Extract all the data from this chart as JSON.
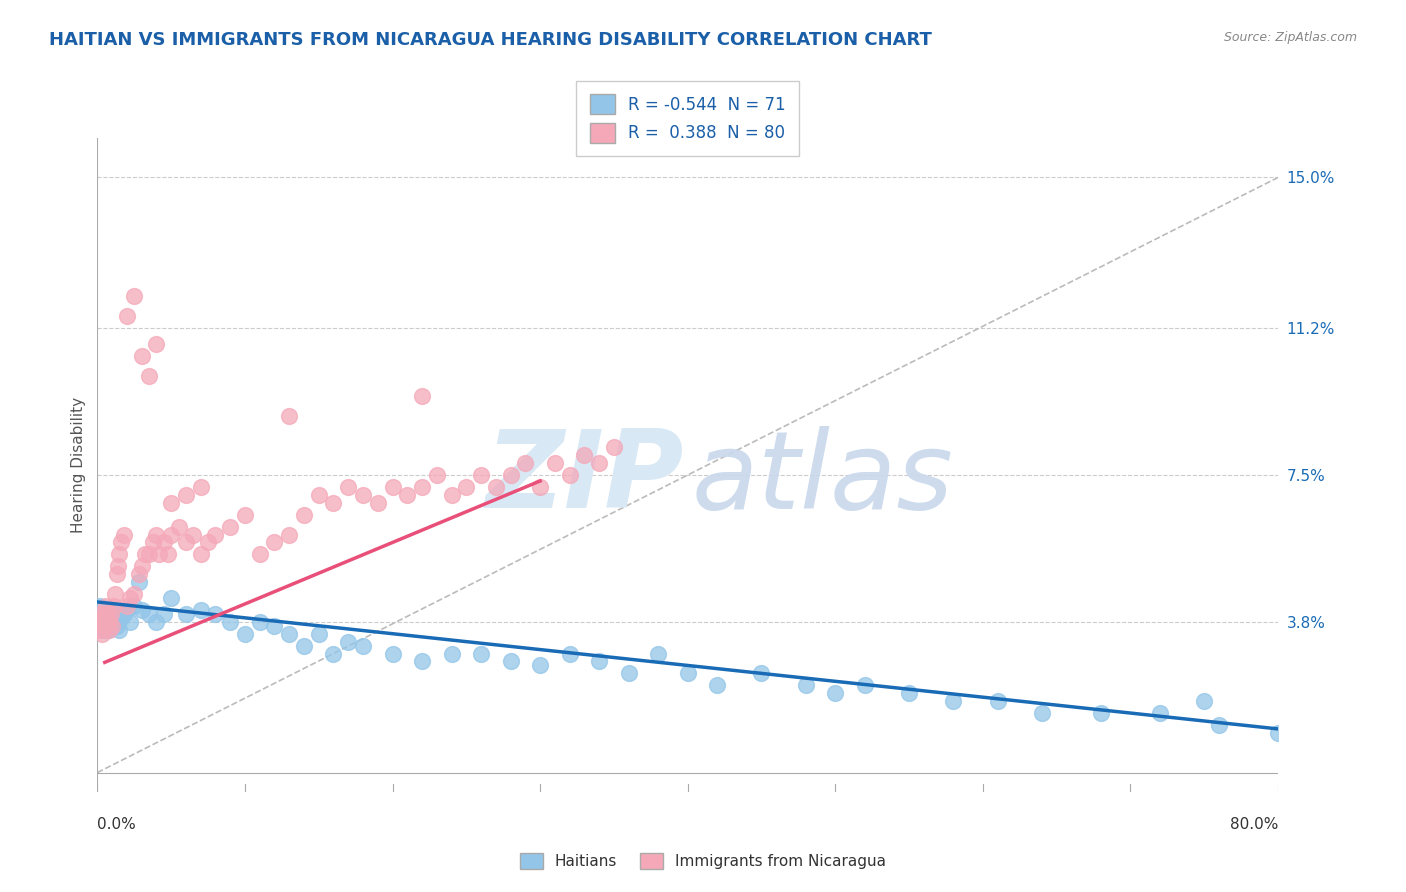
{
  "title": "HAITIAN VS IMMIGRANTS FROM NICARAGUA HEARING DISABILITY CORRELATION CHART",
  "source": "Source: ZipAtlas.com",
  "ylabel": "Hearing Disability",
  "right_yticks": [
    0.038,
    0.075,
    0.112,
    0.15
  ],
  "right_ytick_labels": [
    "3.8%",
    "7.5%",
    "11.2%",
    "15.0%"
  ],
  "xmin": 0.0,
  "xmax": 0.8,
  "ymin": -0.005,
  "ymax": 0.16,
  "haitians_R": -0.544,
  "haitians_N": 71,
  "nicaragua_R": 0.388,
  "nicaragua_N": 80,
  "blue_color": "#92C5E8",
  "pink_color": "#F4A8B8",
  "blue_line_color": "#1A6BB5",
  "pink_line_color": "#E8507A",
  "title_color": "#1A5FA8",
  "source_color": "#888888",
  "background_color": "#FFFFFF",
  "haitians_x": [
    0.001,
    0.002,
    0.002,
    0.003,
    0.003,
    0.004,
    0.004,
    0.005,
    0.005,
    0.006,
    0.006,
    0.007,
    0.007,
    0.008,
    0.008,
    0.009,
    0.01,
    0.011,
    0.012,
    0.013,
    0.014,
    0.015,
    0.016,
    0.018,
    0.02,
    0.022,
    0.025,
    0.028,
    0.03,
    0.035,
    0.04,
    0.045,
    0.05,
    0.06,
    0.07,
    0.08,
    0.09,
    0.1,
    0.11,
    0.12,
    0.13,
    0.14,
    0.15,
    0.16,
    0.17,
    0.18,
    0.2,
    0.22,
    0.24,
    0.26,
    0.28,
    0.3,
    0.32,
    0.34,
    0.36,
    0.38,
    0.4,
    0.42,
    0.45,
    0.48,
    0.5,
    0.52,
    0.55,
    0.58,
    0.61,
    0.64,
    0.68,
    0.72,
    0.76,
    0.8,
    0.75
  ],
  "haitians_y": [
    0.04,
    0.038,
    0.042,
    0.036,
    0.039,
    0.038,
    0.037,
    0.04,
    0.036,
    0.038,
    0.037,
    0.036,
    0.039,
    0.037,
    0.038,
    0.04,
    0.038,
    0.039,
    0.04,
    0.037,
    0.038,
    0.036,
    0.039,
    0.04,
    0.041,
    0.038,
    0.042,
    0.048,
    0.041,
    0.04,
    0.038,
    0.04,
    0.044,
    0.04,
    0.041,
    0.04,
    0.038,
    0.035,
    0.038,
    0.037,
    0.035,
    0.032,
    0.035,
    0.03,
    0.033,
    0.032,
    0.03,
    0.028,
    0.03,
    0.03,
    0.028,
    0.027,
    0.03,
    0.028,
    0.025,
    0.03,
    0.025,
    0.022,
    0.025,
    0.022,
    0.02,
    0.022,
    0.02,
    0.018,
    0.018,
    0.015,
    0.015,
    0.015,
    0.012,
    0.01,
    0.018
  ],
  "nicaragua_x": [
    0.001,
    0.002,
    0.002,
    0.003,
    0.003,
    0.004,
    0.004,
    0.005,
    0.005,
    0.006,
    0.006,
    0.007,
    0.007,
    0.008,
    0.008,
    0.009,
    0.01,
    0.011,
    0.012,
    0.013,
    0.014,
    0.015,
    0.016,
    0.018,
    0.02,
    0.022,
    0.025,
    0.028,
    0.03,
    0.032,
    0.035,
    0.038,
    0.04,
    0.042,
    0.045,
    0.048,
    0.05,
    0.055,
    0.06,
    0.065,
    0.07,
    0.075,
    0.08,
    0.09,
    0.1,
    0.11,
    0.12,
    0.13,
    0.14,
    0.15,
    0.16,
    0.17,
    0.18,
    0.19,
    0.2,
    0.21,
    0.22,
    0.23,
    0.24,
    0.25,
    0.26,
    0.27,
    0.28,
    0.29,
    0.3,
    0.31,
    0.32,
    0.33,
    0.34,
    0.35,
    0.02,
    0.025,
    0.03,
    0.035,
    0.04,
    0.05,
    0.06,
    0.07,
    0.13,
    0.22
  ],
  "nicaragua_y": [
    0.038,
    0.04,
    0.036,
    0.038,
    0.035,
    0.039,
    0.037,
    0.04,
    0.038,
    0.042,
    0.04,
    0.038,
    0.039,
    0.036,
    0.038,
    0.04,
    0.037,
    0.042,
    0.045,
    0.05,
    0.052,
    0.055,
    0.058,
    0.06,
    0.042,
    0.044,
    0.045,
    0.05,
    0.052,
    0.055,
    0.055,
    0.058,
    0.06,
    0.055,
    0.058,
    0.055,
    0.06,
    0.062,
    0.058,
    0.06,
    0.055,
    0.058,
    0.06,
    0.062,
    0.065,
    0.055,
    0.058,
    0.06,
    0.065,
    0.07,
    0.068,
    0.072,
    0.07,
    0.068,
    0.072,
    0.07,
    0.072,
    0.075,
    0.07,
    0.072,
    0.075,
    0.072,
    0.075,
    0.078,
    0.072,
    0.078,
    0.075,
    0.08,
    0.078,
    0.082,
    0.115,
    0.12,
    0.105,
    0.1,
    0.108,
    0.068,
    0.07,
    0.072,
    0.09,
    0.095
  ]
}
